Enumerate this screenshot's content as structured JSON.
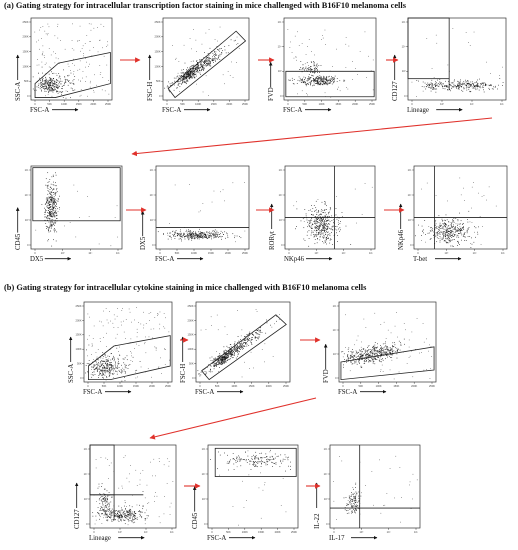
{
  "figure": {
    "section_a_title": "(a) Gating strategy for intracellular transcription factor staining in mice challenged with B16F10 melanoma cells",
    "section_b_title": "(b) Gating strategy for intracellular cytokine staining in mice challenged with B16F10 melanoma cells",
    "arrow_color": "#e0312b",
    "gate_color": "#222222",
    "dot_color": "#1a1a1a"
  },
  "panels": [
    {
      "id": "a1",
      "section": "a",
      "x_label": "FSC-A",
      "y_label": "SSC-A",
      "x_scale": "linear",
      "y_scale": "linear",
      "x_ticks": [
        "0",
        "50K",
        "100K",
        "150K",
        "200K",
        "250K"
      ],
      "y_ticks": [
        "0",
        "50K",
        "100K",
        "150K",
        "200K",
        "250K"
      ],
      "plot_type": "scatter"
    },
    {
      "id": "a2",
      "section": "a",
      "x_label": "FSC-A",
      "y_label": "FSC-H",
      "x_scale": "linear",
      "y_scale": "linear",
      "x_ticks": [
        "0",
        "50K",
        "100K",
        "150K",
        "200K",
        "250K"
      ],
      "y_ticks": [
        "0",
        "50K",
        "100K",
        "150K",
        "200K",
        "250K"
      ],
      "plot_type": "diagonal"
    },
    {
      "id": "a3",
      "section": "a",
      "x_label": "FSC-A",
      "y_label": "FVD",
      "x_scale": "linear",
      "y_scale": "log",
      "x_ticks": [
        "0",
        "50K",
        "100K",
        "150K",
        "200K",
        "250K"
      ],
      "y_ticks": [
        "0",
        "10³",
        "10⁴",
        "10⁵"
      ],
      "plot_type": "viability"
    },
    {
      "id": "a4",
      "section": "a",
      "x_label": "Lineage",
      "y_label": "CD127",
      "x_scale": "log",
      "y_scale": "log",
      "x_ticks": [
        "0",
        "10³",
        "10⁴",
        "10⁵"
      ],
      "y_ticks": [
        "0",
        "10³",
        "10⁴",
        "10⁵"
      ],
      "plot_type": "lineage"
    },
    {
      "id": "a5",
      "section": "a",
      "x_label": "DX5",
      "y_label": "CD45",
      "x_scale": "log",
      "y_scale": "log",
      "x_ticks": [
        "0",
        "10³",
        "10⁴",
        "10⁵"
      ],
      "y_ticks": [
        "0",
        "10³",
        "10⁴",
        "10⁵"
      ],
      "plot_type": "cd45"
    },
    {
      "id": "a6",
      "section": "a",
      "x_label": "FSC-A",
      "y_label": "DX5",
      "x_scale": "linear",
      "y_scale": "log",
      "x_ticks": [
        "0",
        "50K",
        "100K",
        "150K",
        "200K",
        "250K"
      ],
      "y_ticks": [
        "0",
        "10³",
        "10⁴",
        "10⁵"
      ],
      "plot_type": "dx5"
    },
    {
      "id": "a7",
      "section": "a",
      "x_label": "NKp46",
      "y_label": "RORγt",
      "x_scale": "log",
      "y_scale": "log",
      "x_ticks": [
        "0",
        "10³",
        "10⁴",
        "10⁵"
      ],
      "y_ticks": [
        "0",
        "10³",
        "10⁴",
        "10⁵"
      ],
      "plot_type": "ror"
    },
    {
      "id": "a8",
      "section": "a",
      "x_label": "T-bet",
      "y_label": "NKp46",
      "x_scale": "log",
      "y_scale": "log",
      "x_ticks": [
        "0",
        "10³",
        "10⁴",
        "10⁵"
      ],
      "y_ticks": [
        "0",
        "10³",
        "10⁴",
        "10⁵"
      ],
      "plot_type": "tbet"
    },
    {
      "id": "b1",
      "section": "b",
      "x_label": "FSC-A",
      "y_label": "SSC-A",
      "x_scale": "linear",
      "y_scale": "linear",
      "x_ticks": [
        "0",
        "50K",
        "100K",
        "150K",
        "200K",
        "250K"
      ],
      "y_ticks": [
        "0",
        "50K",
        "100K",
        "150K",
        "200K",
        "250K"
      ],
      "plot_type": "scatter"
    },
    {
      "id": "b2",
      "section": "b",
      "x_label": "FSC-A",
      "y_label": "FSC-H",
      "x_scale": "linear",
      "y_scale": "linear",
      "x_ticks": [
        "0",
        "50K",
        "100K",
        "150K",
        "200K",
        "250K"
      ],
      "y_ticks": [
        "0",
        "50K",
        "100K",
        "150K",
        "200K",
        "250K"
      ],
      "plot_type": "diagonal"
    },
    {
      "id": "b3",
      "section": "b",
      "x_label": "FSC-A",
      "y_label": "FVD",
      "x_scale": "linear",
      "y_scale": "log",
      "x_ticks": [
        "0",
        "50K",
        "100K",
        "150K",
        "200K",
        "250K"
      ],
      "y_ticks": [
        "0",
        "10³",
        "10⁴",
        "10⁵"
      ],
      "plot_type": "viability_b"
    },
    {
      "id": "b4",
      "section": "b",
      "x_label": "Lineage",
      "y_label": "CD127",
      "x_scale": "log",
      "y_scale": "log",
      "x_ticks": [
        "0",
        "10³",
        "10⁴",
        "10⁵"
      ],
      "y_ticks": [
        "0",
        "10³",
        "10⁴",
        "10⁵"
      ],
      "plot_type": "lineage_b"
    },
    {
      "id": "b5",
      "section": "b",
      "x_label": "FSC-A",
      "y_label": "CD45",
      "x_scale": "linear",
      "y_scale": "log",
      "x_ticks": [
        "0",
        "50K",
        "100K",
        "150K",
        "200K",
        "250K"
      ],
      "y_ticks": [
        "0",
        "10³",
        "10⁴",
        "10⁵"
      ],
      "plot_type": "cd45_b"
    },
    {
      "id": "b6",
      "section": "b",
      "x_label": "IL-17",
      "y_label": "IL-22",
      "x_scale": "log",
      "y_scale": "log",
      "x_ticks": [
        "0",
        "10³",
        "10⁴",
        "10⁵"
      ],
      "y_ticks": [
        "0",
        "10³",
        "10⁴",
        "10⁵"
      ],
      "plot_type": "il"
    }
  ]
}
